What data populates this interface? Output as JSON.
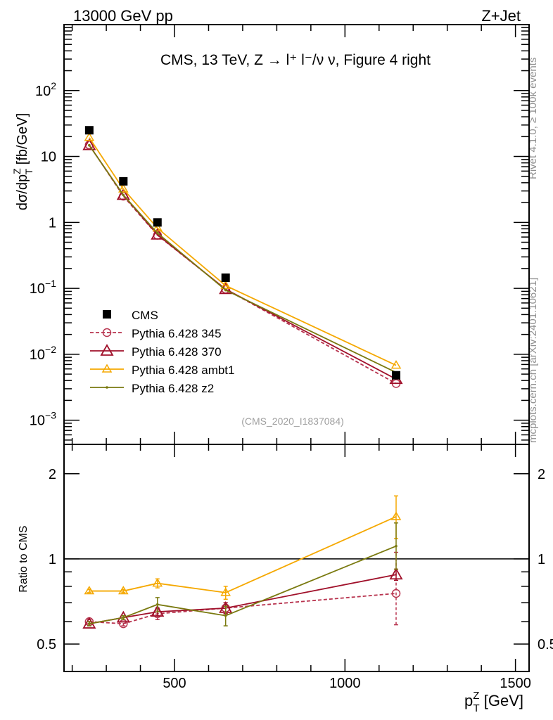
{
  "header": {
    "left": "13000 GeV pp",
    "right": "Z+Jet"
  },
  "side_text": {
    "rivet": "Rivet 4.1.0, ≥ 100k events",
    "mcplots": "mcplots.cern.ch [arXiv:2401.10621]"
  },
  "colors": {
    "CMS": "#000000",
    "p345": "#b8344f",
    "p370": "#a0102a",
    "ambt1": "#f5a800",
    "z2": "#7a7a10"
  },
  "chart_data": [
    {
      "type": "line",
      "title": "CMS, 13 TeV, Z →  l⁺ l⁻/ν ν, Figure 4 right",
      "watermark": "(CMS_2020_I1837084)",
      "ylabel": "dσ/dp",
      "ylabel_sup": "Z",
      "ylabel_sub": "T",
      "ylabel_unit": " [fb/GeV]",
      "yscale": "log",
      "ylim": [
        0.00043,
        1000
      ],
      "xlim": [
        176,
        1540
      ],
      "ytick_labels": [
        {
          "v": 100,
          "base": "10",
          "exp": "2"
        },
        {
          "v": 10,
          "base": "10",
          "exp": ""
        },
        {
          "v": 1,
          "base": "1",
          "exp": ""
        },
        {
          "v": 0.1,
          "base": "10",
          "exp": "−1"
        },
        {
          "v": 0.01,
          "base": "10",
          "exp": "−2"
        },
        {
          "v": 0.001,
          "base": "10",
          "exp": "−3"
        }
      ],
      "x": [
        250,
        350,
        450,
        650,
        1150
      ],
      "legend_position": "bottom-left",
      "series": [
        {
          "name": "CMS",
          "key": "CMS",
          "marker": "square",
          "values": [
            25,
            4.2,
            1.0,
            0.145,
            0.0048
          ]
        },
        {
          "name": "Pythia 6.428 345",
          "key": "p345",
          "marker": "circle",
          "dash": true,
          "values": [
            15,
            2.5,
            0.64,
            0.097,
            0.0036
          ]
        },
        {
          "name": "Pythia 6.428 370",
          "key": "p370",
          "marker": "triangle-large",
          "values": [
            14.8,
            2.6,
            0.65,
            0.097,
            0.0042
          ]
        },
        {
          "name": "Pythia 6.428 ambt1",
          "key": "ambt1",
          "marker": "triangle",
          "values": [
            19.3,
            3.2,
            0.82,
            0.11,
            0.0068
          ]
        },
        {
          "name": "Pythia 6.428 z2",
          "key": "z2",
          "marker": "dot",
          "values": [
            14.8,
            2.6,
            0.69,
            0.094,
            0.0053
          ]
        }
      ]
    },
    {
      "type": "line",
      "ylabel": "Ratio to CMS",
      "yscale": "log",
      "ylim": [
        0.4,
        2.54
      ],
      "xlim": [
        176,
        1540
      ],
      "xlabel": "p",
      "xlabel_sup": "Z",
      "xlabel_sub": "T",
      "xlabel_unit": " [GeV]",
      "xtick_labels": [
        500,
        1000,
        1500
      ],
      "ytick_labels": [
        {
          "v": 2,
          "t": "2"
        },
        {
          "v": 1,
          "t": "1"
        },
        {
          "v": 0.5,
          "t": "0.5"
        }
      ],
      "x": [
        250,
        350,
        450,
        650,
        1150
      ],
      "series": [
        {
          "key": "p345",
          "marker": "circle",
          "dash": true,
          "values": [
            0.6,
            0.59,
            0.64,
            0.67,
            0.755
          ],
          "err_lo": [
            0.01,
            0.01,
            0.03,
            0.03,
            0.17
          ],
          "err_hi": [
            0.01,
            0.01,
            0.03,
            0.03,
            0.3
          ]
        },
        {
          "key": "p370",
          "marker": "triangle-large",
          "values": [
            0.59,
            0.62,
            0.65,
            0.67,
            0.88
          ],
          "err_lo": [
            0.01,
            0.01,
            0.02,
            0.03,
            0.04
          ],
          "err_hi": [
            0.01,
            0.01,
            0.02,
            0.03,
            0.04
          ]
        },
        {
          "key": "ambt1",
          "marker": "triangle",
          "values": [
            0.77,
            0.77,
            0.82,
            0.76,
            1.41
          ],
          "err_lo": [
            0.01,
            0.01,
            0.03,
            0.04,
            0.23
          ],
          "err_hi": [
            0.01,
            0.01,
            0.03,
            0.04,
            0.26
          ]
        },
        {
          "key": "z2",
          "marker": "dot",
          "values": [
            0.59,
            0.62,
            0.69,
            0.63,
            1.11
          ],
          "err_lo": [
            0.01,
            0.01,
            0.04,
            0.05,
            0.19
          ],
          "err_hi": [
            0.01,
            0.01,
            0.04,
            0.05,
            0.23
          ]
        }
      ]
    }
  ]
}
